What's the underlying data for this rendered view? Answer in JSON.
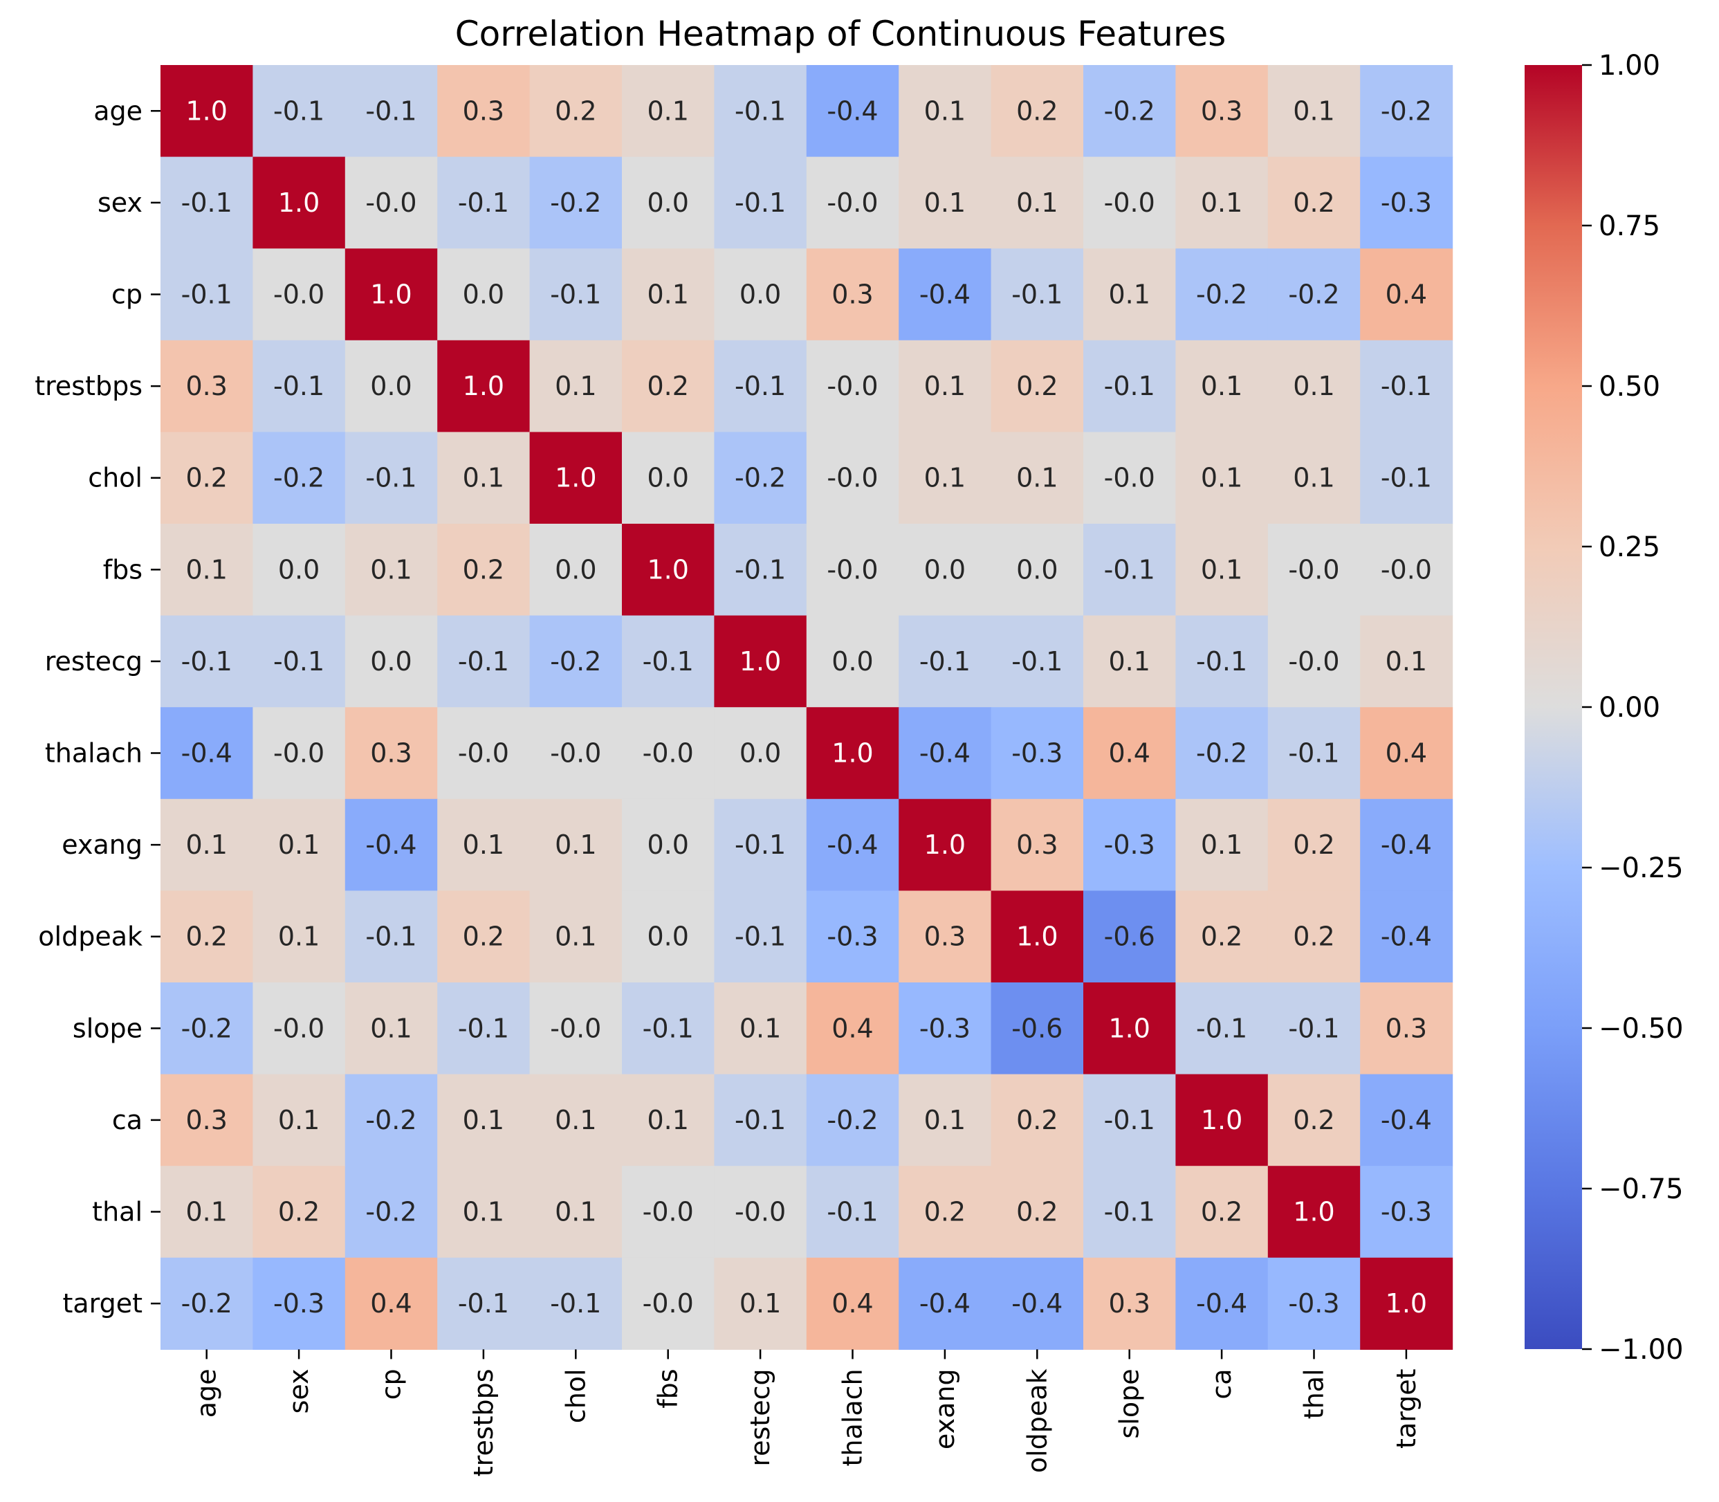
{
  "chart_data": {
    "type": "heatmap",
    "title": "Correlation Heatmap of Continuous Features",
    "colormap": "coolwarm",
    "annotation_format": "0.1f",
    "vmin": -1.0,
    "vmax": 1.0,
    "labels": [
      "age",
      "sex",
      "cp",
      "trestbps",
      "chol",
      "fbs",
      "restecg",
      "thalach",
      "exang",
      "oldpeak",
      "slope",
      "ca",
      "thal",
      "target"
    ],
    "matrix": [
      [
        1.0,
        -0.1,
        -0.1,
        0.3,
        0.2,
        0.1,
        -0.1,
        -0.4,
        0.1,
        0.2,
        -0.2,
        0.3,
        0.1,
        -0.2
      ],
      [
        -0.1,
        1.0,
        -0.0,
        -0.1,
        -0.2,
        0.0,
        -0.1,
        -0.0,
        0.1,
        0.1,
        -0.0,
        0.1,
        0.2,
        -0.3
      ],
      [
        -0.1,
        -0.0,
        1.0,
        0.0,
        -0.1,
        0.1,
        0.0,
        0.3,
        -0.4,
        -0.1,
        0.1,
        -0.2,
        -0.2,
        0.4
      ],
      [
        0.3,
        -0.1,
        0.0,
        1.0,
        0.1,
        0.2,
        -0.1,
        -0.0,
        0.1,
        0.2,
        -0.1,
        0.1,
        0.1,
        -0.1
      ],
      [
        0.2,
        -0.2,
        -0.1,
        0.1,
        1.0,
        0.0,
        -0.2,
        -0.0,
        0.1,
        0.1,
        -0.0,
        0.1,
        0.1,
        -0.1
      ],
      [
        0.1,
        0.0,
        0.1,
        0.2,
        0.0,
        1.0,
        -0.1,
        -0.0,
        0.0,
        0.0,
        -0.1,
        0.1,
        -0.0,
        -0.0
      ],
      [
        -0.1,
        -0.1,
        0.0,
        -0.1,
        -0.2,
        -0.1,
        1.0,
        0.0,
        -0.1,
        -0.1,
        0.1,
        -0.1,
        -0.0,
        0.1
      ],
      [
        -0.4,
        -0.0,
        0.3,
        -0.0,
        -0.0,
        -0.0,
        0.0,
        1.0,
        -0.4,
        -0.3,
        0.4,
        -0.2,
        -0.1,
        0.4
      ],
      [
        0.1,
        0.1,
        -0.4,
        0.1,
        0.1,
        0.0,
        -0.1,
        -0.4,
        1.0,
        0.3,
        -0.3,
        0.1,
        0.2,
        -0.4
      ],
      [
        0.2,
        0.1,
        -0.1,
        0.2,
        0.1,
        0.0,
        -0.1,
        -0.3,
        0.3,
        1.0,
        -0.6,
        0.2,
        0.2,
        -0.4
      ],
      [
        -0.2,
        -0.0,
        0.1,
        -0.1,
        -0.0,
        -0.1,
        0.1,
        0.4,
        -0.3,
        -0.6,
        1.0,
        -0.1,
        -0.1,
        0.3
      ],
      [
        0.3,
        0.1,
        -0.2,
        0.1,
        0.1,
        0.1,
        -0.1,
        -0.2,
        0.1,
        0.2,
        -0.1,
        1.0,
        0.2,
        -0.4
      ],
      [
        0.1,
        0.2,
        -0.2,
        0.1,
        0.1,
        -0.0,
        -0.0,
        -0.1,
        0.2,
        0.2,
        -0.1,
        0.2,
        1.0,
        -0.3
      ],
      [
        -0.2,
        -0.3,
        0.4,
        -0.1,
        -0.1,
        -0.0,
        0.1,
        0.4,
        -0.4,
        -0.4,
        0.3,
        -0.4,
        -0.3,
        1.0
      ]
    ],
    "colorbar": {
      "ticks": [
        1.0,
        0.75,
        0.5,
        0.25,
        0.0,
        -0.25,
        -0.5,
        -0.75,
        -1.0
      ],
      "tick_labels": [
        "1.00",
        "0.75",
        "0.50",
        "0.25",
        "0.00",
        "−0.25",
        "−0.50",
        "−0.75",
        "−1.00"
      ]
    }
  }
}
